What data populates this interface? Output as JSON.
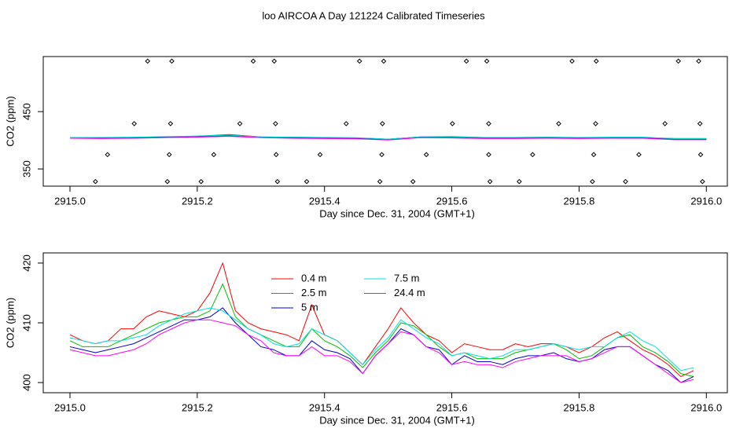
{
  "title": "loo AIRCOA A  Day 121224  Calibrated Timeseries",
  "chart_data": [
    {
      "type": "line",
      "x_label": "Day since Dec. 31, 2004 (GMT+1)",
      "y_label": "CO2 (ppm)",
      "xlim": [
        2914.958,
        2916.033
      ],
      "ylim": [
        320,
        546
      ],
      "xticks": [
        {
          "value": 2915,
          "label": "2915.0"
        },
        2915.2,
        2915.4,
        2915.6,
        2915.8,
        {
          "value": 2916,
          "label": "2916.0"
        }
      ],
      "yticks": [
        350,
        450
      ],
      "x": [
        2915.0,
        2915.05,
        2915.1,
        2915.15,
        2915.2,
        2915.25,
        2915.3,
        2915.35,
        2915.4,
        2915.45,
        2915.5,
        2915.55,
        2915.6,
        2915.65,
        2915.7,
        2915.75,
        2915.8,
        2915.85,
        2915.9,
        2915.95,
        2916.0
      ],
      "series": [
        {
          "color": "#ff0000",
          "values": [
            405,
            404.5,
            405,
            406,
            407,
            410,
            406,
            405.5,
            404.5,
            404,
            402,
            406,
            406.5,
            405,
            405,
            405.5,
            404.5,
            405,
            405,
            403,
            403
          ]
        },
        {
          "color": "#00c000",
          "values": [
            404.5,
            404,
            404.5,
            405.5,
            406.5,
            408.5,
            405.5,
            404.5,
            404,
            403.5,
            401.5,
            405.5,
            405.5,
            404,
            404,
            404.5,
            404,
            404.5,
            404.5,
            402.5,
            402.5
          ]
        },
        {
          "color": "#0000cc",
          "values": [
            404,
            403.5,
            404,
            405,
            406,
            407.5,
            405,
            404,
            403.5,
            403,
            401,
            405,
            404.5,
            403.5,
            403.5,
            404,
            403.5,
            404,
            404,
            401.5,
            401.5
          ]
        },
        {
          "color": "#00e0e0",
          "values": [
            405,
            405,
            405.5,
            406.5,
            407.5,
            409,
            406,
            405.5,
            405,
            404.5,
            402,
            406,
            406,
            405,
            405,
            405.5,
            405,
            405.5,
            405.5,
            403,
            403
          ]
        },
        {
          "color": "#ff00ff",
          "values": [
            403.5,
            403,
            403.5,
            404.5,
            405.5,
            407,
            404.5,
            403.5,
            403,
            402.5,
            400.5,
            404.5,
            404,
            403,
            403,
            403.5,
            403,
            403.5,
            403.5,
            401,
            401
          ]
        },
        {
          "type": "scatter",
          "marker": "diamond",
          "color": "#000000",
          "x": [
            2915.122,
            2915.16,
            2915.288,
            2915.321,
            2915.455,
            2915.493,
            2915.623,
            2915.655,
            2915.789,
            2915.827,
            2915.956,
            2915.988,
            2915.101,
            2915.158,
            2915.267,
            2915.323,
            2915.434,
            2915.491,
            2915.601,
            2915.658,
            2915.768,
            2915.826,
            2915.935,
            2915.99,
            2915.059,
            2915.156,
            2915.226,
            2915.324,
            2915.393,
            2915.49,
            2915.56,
            2915.658,
            2915.727,
            2915.823,
            2915.894,
            2915.991,
            2915.04,
            2915.153,
            2915.206,
            2915.326,
            2915.372,
            2915.487,
            2915.539,
            2915.66,
            2915.706,
            2915.821,
            2915.873,
            2915.994
          ],
          "values": [
            538,
            538,
            538,
            538,
            538,
            538,
            538,
            538,
            538,
            538,
            538,
            538,
            429,
            429,
            429,
            429,
            429,
            429,
            429,
            429,
            429,
            429,
            429,
            429,
            375,
            375,
            375,
            375,
            375,
            375,
            375,
            375,
            375,
            375,
            375,
            375,
            328,
            328,
            328,
            328,
            328,
            328,
            328,
            328,
            328,
            328,
            328,
            328
          ]
        }
      ]
    },
    {
      "type": "line",
      "x_label": "Day since Dec. 31, 2004 (GMT+1)",
      "y_label": "CO2 (ppm)",
      "xlim": [
        2914.958,
        2916.033
      ],
      "ylim": [
        398.3,
        421.7
      ],
      "xticks": [
        {
          "value": 2915,
          "label": "2915.0"
        },
        2915.2,
        2915.4,
        2915.6,
        2915.8,
        {
          "value": 2916,
          "label": "2916.0"
        }
      ],
      "yticks": [
        400,
        410,
        420
      ],
      "legend": "top",
      "x": [
        2915.0,
        2915.02,
        2915.04,
        2915.06,
        2915.08,
        2915.1,
        2915.12,
        2915.14,
        2915.16,
        2915.18,
        2915.2,
        2915.22,
        2915.24,
        2915.26,
        2915.28,
        2915.3,
        2915.32,
        2915.34,
        2915.36,
        2915.38,
        2915.4,
        2915.42,
        2915.44,
        2915.46,
        2915.48,
        2915.5,
        2915.52,
        2915.54,
        2915.56,
        2915.58,
        2915.6,
        2915.62,
        2915.64,
        2915.66,
        2915.68,
        2915.7,
        2915.72,
        2915.74,
        2915.76,
        2915.78,
        2915.8,
        2915.82,
        2915.84,
        2915.86,
        2915.88,
        2915.9,
        2915.92,
        2915.94,
        2915.96,
        2915.98
      ],
      "series": [
        {
          "name": "0.4 m",
          "color": "#ff0000",
          "values": [
            408,
            407,
            406.5,
            407,
            409,
            409,
            411,
            412,
            411.5,
            411,
            412,
            415,
            420,
            412,
            410,
            409,
            408.5,
            408,
            407,
            413,
            408,
            407,
            405,
            403,
            406,
            409,
            412.5,
            410,
            408,
            407,
            405,
            406.5,
            406,
            405.5,
            405.5,
            406.5,
            406,
            406.5,
            406.5,
            406,
            405,
            406,
            407.5,
            408.5,
            407,
            405.5,
            404.5,
            403,
            401,
            402
          ]
        },
        {
          "name": "2.5 m",
          "color": "#00c000",
          "values": [
            407,
            406,
            406,
            406,
            407,
            408,
            409,
            410,
            410.5,
            411,
            411,
            412,
            416.5,
            411,
            409,
            408,
            407,
            406,
            406,
            409,
            407,
            406,
            404.5,
            402.5,
            405,
            407,
            410,
            409.5,
            408,
            406,
            404.5,
            405,
            404,
            404,
            404,
            405,
            405.5,
            406,
            406.5,
            405.5,
            404,
            404.5,
            406,
            407.5,
            408,
            406,
            405,
            403.5,
            401.5,
            401
          ]
        },
        {
          "name": "5 m",
          "color": "#0000cc",
          "values": [
            406,
            405.5,
            405,
            405.5,
            406,
            406.5,
            407.5,
            408.5,
            409.5,
            410.5,
            410.5,
            411,
            412.5,
            410,
            408,
            406,
            405.5,
            404.5,
            404.5,
            407,
            405.5,
            405,
            404,
            401.5,
            404.5,
            406.5,
            409,
            408,
            406,
            405.5,
            403,
            404.5,
            403.5,
            403.5,
            403,
            404,
            404.5,
            404.5,
            405,
            404,
            403.5,
            404,
            405.5,
            406,
            406,
            404.5,
            403,
            402,
            400,
            401
          ]
        },
        {
          "name": "7.5 m",
          "color": "#00e0e0",
          "values": [
            407.5,
            407,
            406.5,
            407,
            407,
            407.5,
            408,
            409.5,
            410.5,
            411.5,
            412,
            412.5,
            412,
            410.5,
            409,
            408,
            406.5,
            406,
            406.5,
            409,
            408,
            407,
            405,
            403,
            405.5,
            407.5,
            410.5,
            409,
            407.5,
            406.5,
            404.5,
            405,
            404.5,
            404,
            404.5,
            405.5,
            405.5,
            406,
            406.5,
            406,
            405.5,
            406,
            406,
            407.5,
            408.5,
            407,
            406,
            404,
            402,
            402.5
          ]
        },
        {
          "name": "24.4 m",
          "color": "#ff00ff",
          "values": [
            405.5,
            405,
            404.5,
            404.5,
            405,
            405.5,
            406.5,
            408,
            409,
            410,
            410.5,
            410.5,
            410,
            409.5,
            408,
            407,
            405,
            404.5,
            404.5,
            406,
            404.5,
            404.5,
            403.5,
            401.5,
            404.5,
            406.5,
            408.5,
            408,
            406,
            405,
            403,
            403.5,
            403,
            403,
            402.5,
            403.5,
            404,
            404.5,
            404.5,
            404.5,
            403.5,
            404,
            405,
            406,
            406,
            404.5,
            403,
            401.5,
            400,
            400.5
          ]
        }
      ]
    }
  ]
}
